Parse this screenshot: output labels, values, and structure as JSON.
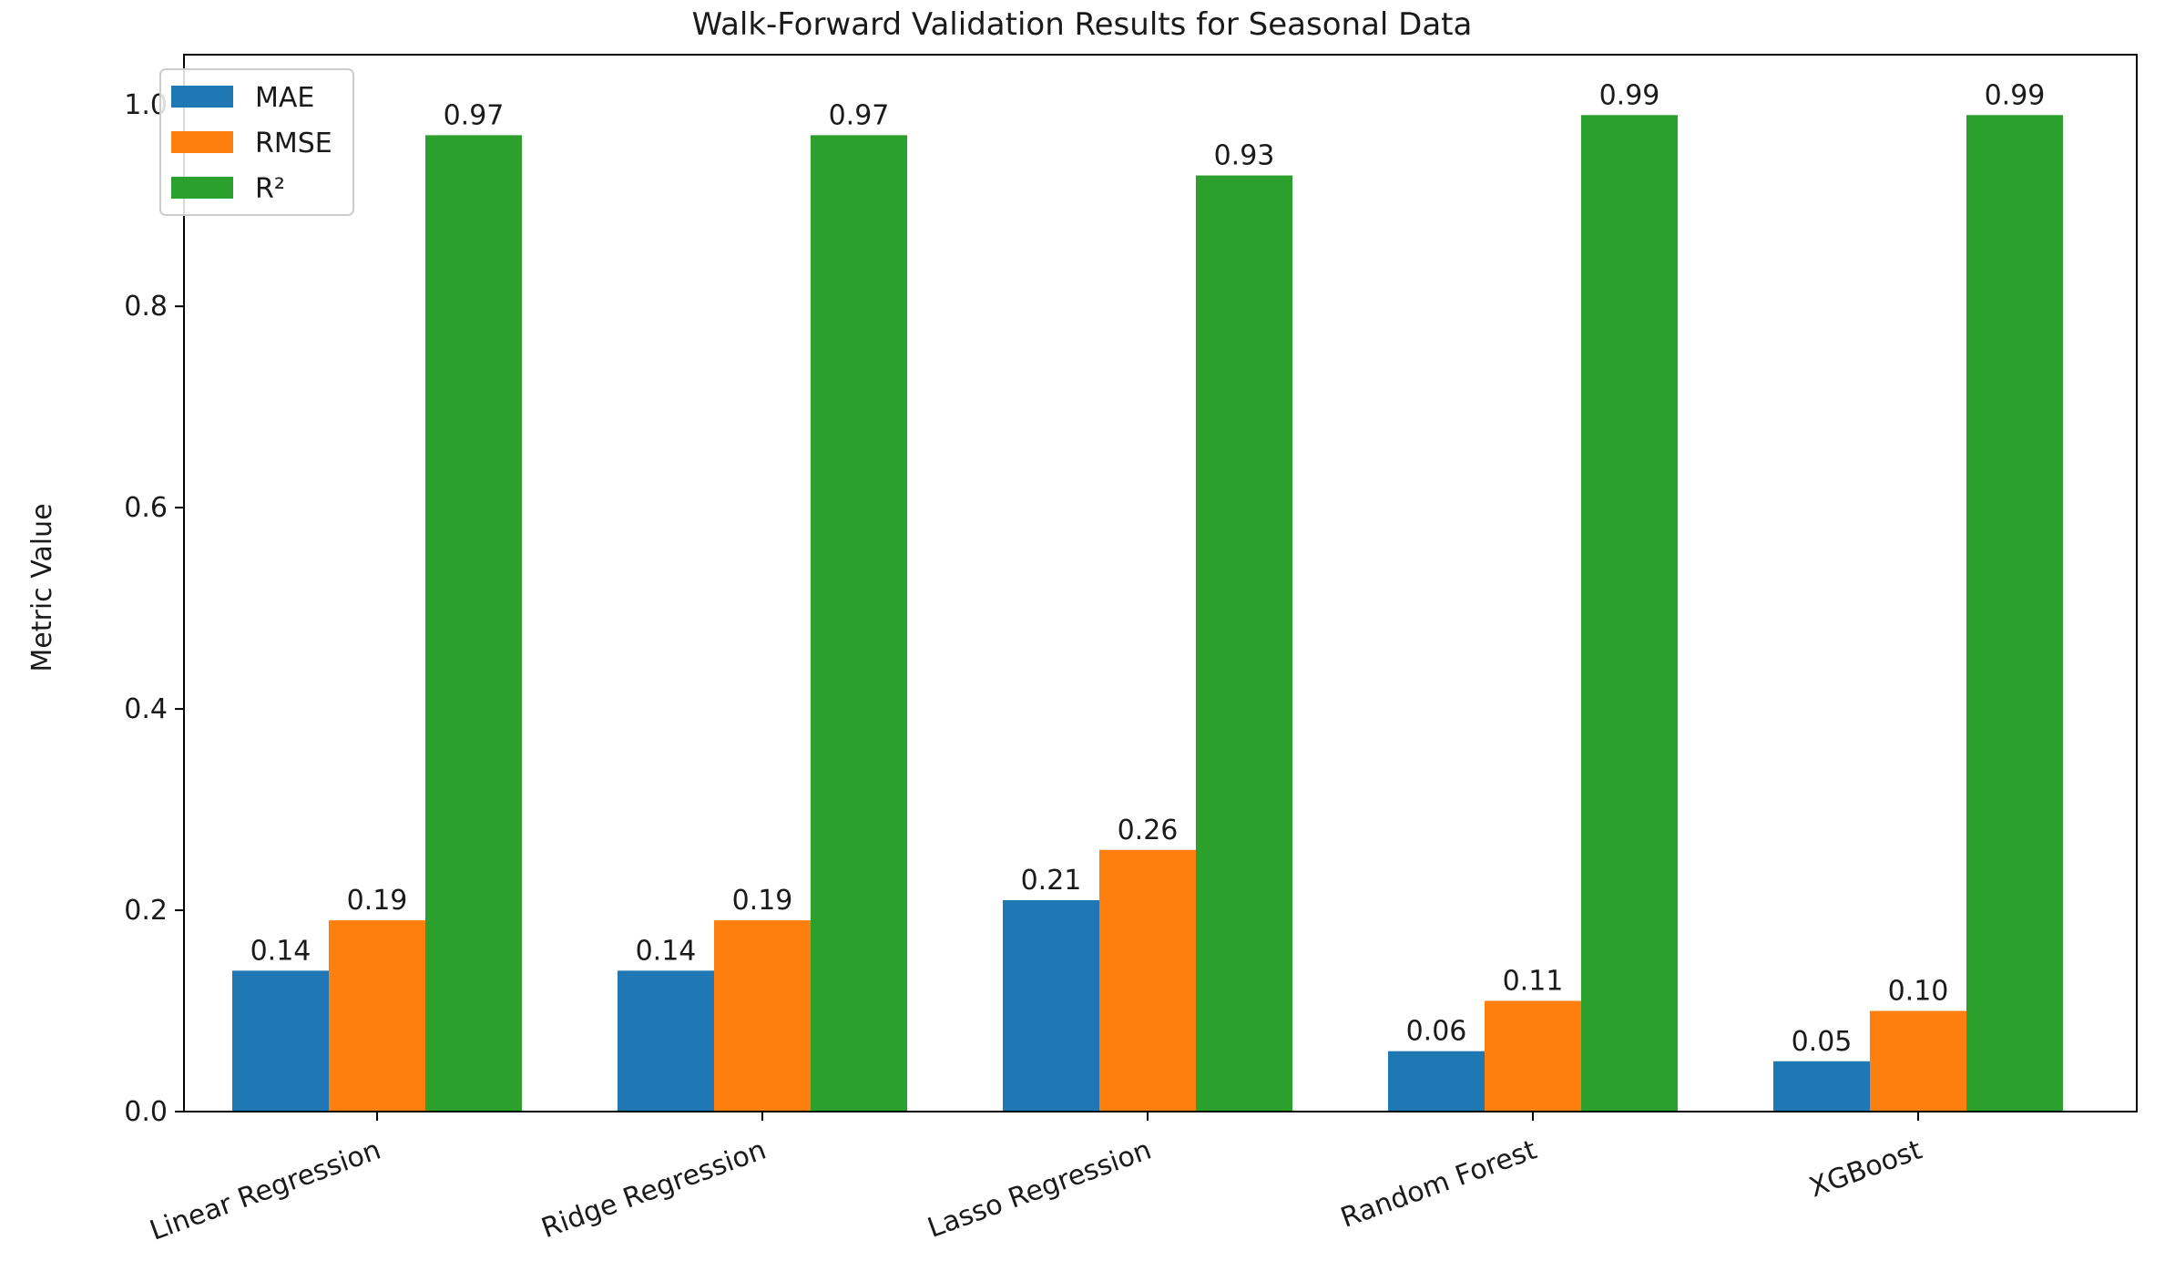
{
  "chart_data": {
    "type": "bar",
    "title": "Walk-Forward Validation Results for Seasonal Data",
    "xlabel": "",
    "ylabel": "Metric Value",
    "categories": [
      "Linear Regression",
      "Ridge Regression",
      "Lasso Regression",
      "Random Forest",
      "XGBoost"
    ],
    "series": [
      {
        "name": "MAE",
        "color": "#1f77b4",
        "values": [
          0.14,
          0.14,
          0.21,
          0.06,
          0.05
        ]
      },
      {
        "name": "RMSE",
        "color": "#ff7f0e",
        "values": [
          0.19,
          0.19,
          0.26,
          0.11,
          0.1
        ]
      },
      {
        "name": "R²",
        "color": "#2ca02c",
        "values": [
          0.97,
          0.97,
          0.93,
          0.99,
          0.99
        ]
      }
    ],
    "data_labels": [
      [
        "0.14",
        "0.14",
        "0.21",
        "0.06",
        "0.05"
      ],
      [
        "0.19",
        "0.19",
        "0.26",
        "0.11",
        "0.10"
      ],
      [
        "0.97",
        "0.97",
        "0.93",
        "0.99",
        "0.99"
      ]
    ],
    "ylim": [
      0,
      1.05
    ],
    "yticks": [
      0.0,
      0.2,
      0.4,
      0.6,
      0.8,
      1.0
    ],
    "ytick_labels": [
      "0.0",
      "0.2",
      "0.4",
      "0.6",
      "0.8",
      "1.0"
    ],
    "xtick_rotation_deg": -20,
    "grid": false,
    "legend_position": "top-left"
  }
}
